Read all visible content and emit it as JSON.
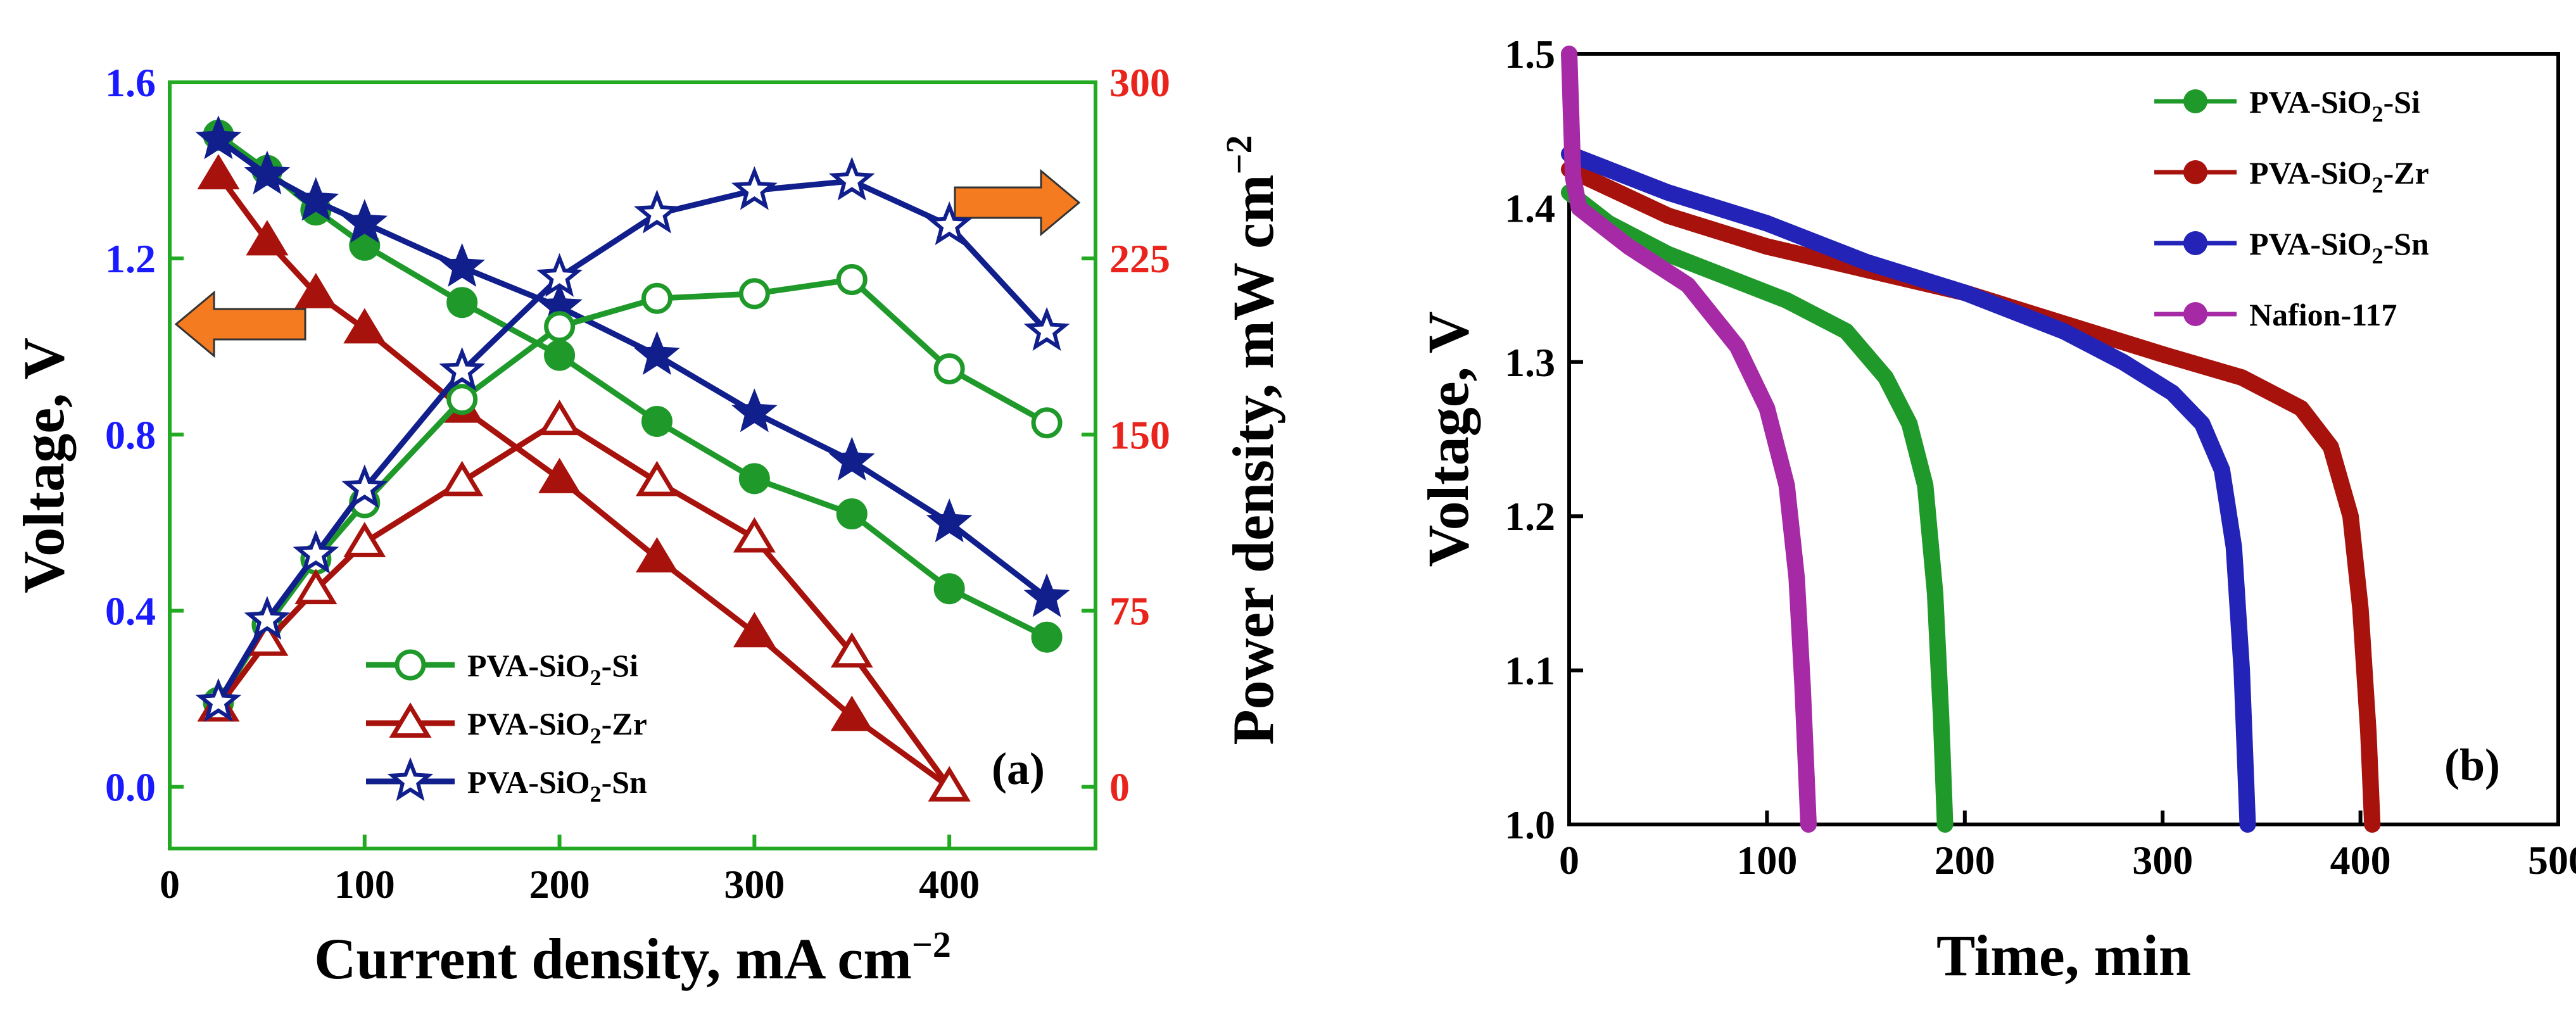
{
  "chart_data": [
    {
      "type": "line",
      "panel_label": "(a)",
      "xlabel": "Current density, mA cm",
      "xlabel_sup": "−2",
      "ylabel": "Voltage, V",
      "ylabel_right": "Power density, mW cm",
      "ylabel_right_sup": "−2",
      "xlim": [
        0,
        475
      ],
      "ylim": [
        -0.14,
        1.6
      ],
      "ylim_right": [
        -26.25,
        300
      ],
      "x_ticks": [
        "0",
        "100",
        "200",
        "300",
        "400"
      ],
      "x_tick_values": [
        0,
        100,
        200,
        300,
        400
      ],
      "y_ticks": [
        "0.0",
        "0.4",
        "0.8",
        "1.2",
        "1.6"
      ],
      "y_tick_values": [
        0.0,
        0.4,
        0.8,
        1.2,
        1.6
      ],
      "y_right_ticks": [
        "0",
        "75",
        "150",
        "225",
        "300"
      ],
      "y_right_tick_values": [
        0,
        75,
        150,
        225,
        300
      ],
      "colors": {
        "left_axis": "#1a1aff",
        "right_axis": "#e8241c",
        "axis_line": "#22aa22",
        "arrow": "#f47b20"
      },
      "arrows": [
        {
          "direction": "left",
          "meaning": "voltage axis"
        },
        {
          "direction": "right",
          "meaning": "power density axis"
        }
      ],
      "legend": [
        {
          "label_main": "PVA-SiO",
          "label_sub": "2",
          "label_end": "-Si",
          "color": "#1f9a2a",
          "marker": "circle"
        },
        {
          "label_main": "PVA-SiO",
          "label_sub": "2",
          "label_end": "-Zr",
          "color": "#a8120c",
          "marker": "triangle"
        },
        {
          "label_main": "PVA-SiO",
          "label_sub": "2",
          "label_end": "-Sn",
          "color": "#111f8c",
          "marker": "star"
        }
      ],
      "series": [
        {
          "name": "PVA-SiO2-Si voltage",
          "axis": "left",
          "marker": "circle",
          "filled": true,
          "color": "#1f9a2a",
          "x": [
            25,
            50,
            75,
            100,
            150,
            200,
            250,
            300,
            350,
            400,
            450
          ],
          "values": [
            1.48,
            1.4,
            1.31,
            1.23,
            1.1,
            0.98,
            0.83,
            0.7,
            0.62,
            0.45,
            0.34
          ]
        },
        {
          "name": "PVA-SiO2-Zr voltage",
          "axis": "left",
          "marker": "triangle",
          "filled": true,
          "color": "#a8120c",
          "x": [
            25,
            50,
            75,
            100,
            150,
            200,
            250,
            300,
            350,
            400
          ],
          "values": [
            1.39,
            1.24,
            1.12,
            1.04,
            0.86,
            0.7,
            0.52,
            0.35,
            0.16,
            0.0
          ]
        },
        {
          "name": "PVA-SiO2-Sn voltage",
          "axis": "left",
          "marker": "star",
          "filled": true,
          "color": "#111f8c",
          "x": [
            25,
            50,
            75,
            100,
            150,
            200,
            250,
            300,
            350,
            400,
            450
          ],
          "values": [
            1.47,
            1.39,
            1.33,
            1.28,
            1.18,
            1.09,
            0.98,
            0.85,
            0.74,
            0.6,
            0.43
          ]
        },
        {
          "name": "PVA-SiO2-Si power",
          "axis": "right",
          "marker": "circle",
          "filled": false,
          "color": "#1f9a2a",
          "x": [
            25,
            50,
            75,
            100,
            150,
            200,
            250,
            300,
            350,
            400,
            450
          ],
          "values": [
            36,
            69,
            97,
            121,
            165,
            196,
            208,
            210,
            216,
            178,
            155
          ]
        },
        {
          "name": "PVA-SiO2-Zr power",
          "axis": "right",
          "marker": "triangle",
          "filled": false,
          "color": "#a8120c",
          "x": [
            25,
            50,
            75,
            100,
            150,
            200,
            250,
            300,
            350,
            400
          ],
          "values": [
            34,
            62,
            84,
            104,
            130,
            156,
            130,
            106,
            57,
            0
          ]
        },
        {
          "name": "PVA-SiO2-Sn power",
          "axis": "right",
          "marker": "star",
          "filled": false,
          "color": "#111f8c",
          "x": [
            25,
            50,
            75,
            100,
            150,
            200,
            250,
            300,
            350,
            400,
            450
          ],
          "values": [
            36,
            71,
            99,
            127,
            177,
            217,
            244,
            254,
            258,
            239,
            194
          ]
        }
      ]
    },
    {
      "type": "line",
      "panel_label": "(b)",
      "xlabel": "Time, min",
      "ylabel": "Voltage, V",
      "xlim": [
        0,
        500
      ],
      "ylim": [
        1.0,
        1.5
      ],
      "x_ticks": [
        "0",
        "100",
        "200",
        "300",
        "400",
        "500"
      ],
      "x_tick_values": [
        0,
        100,
        200,
        300,
        400,
        500
      ],
      "y_ticks": [
        "1.0",
        "1.1",
        "1.2",
        "1.3",
        "1.4",
        "1.5"
      ],
      "y_tick_values": [
        1.0,
        1.1,
        1.2,
        1.3,
        1.4,
        1.5
      ],
      "legend": [
        {
          "label_main": "PVA-SiO",
          "label_sub": "2",
          "label_end": "-Si",
          "color": "#1f9a2a"
        },
        {
          "label_main": "PVA-SiO",
          "label_sub": "2",
          "label_end": "-Zr",
          "color": "#a8120c"
        },
        {
          "label_main": "PVA-SiO",
          "label_sub": "2",
          "label_end": "-Sn",
          "color": "#2323b8"
        },
        {
          "label_main": "Nafion-117",
          "label_sub": "",
          "label_end": "",
          "color": "#a62aa6"
        }
      ],
      "series": [
        {
          "name": "PVA-SiO2-Si",
          "color": "#1f9a2a",
          "x": [
            0,
            20,
            50,
            80,
            110,
            140,
            160,
            172,
            180,
            185,
            188,
            190
          ],
          "values": [
            1.41,
            1.39,
            1.37,
            1.355,
            1.34,
            1.32,
            1.29,
            1.26,
            1.22,
            1.15,
            1.07,
            1.0
          ]
        },
        {
          "name": "PVA-SiO2-Zr",
          "color": "#a8120c",
          "x": [
            0,
            50,
            100,
            150,
            200,
            250,
            300,
            340,
            370,
            385,
            395,
            400,
            404,
            406
          ],
          "values": [
            1.425,
            1.395,
            1.375,
            1.36,
            1.345,
            1.325,
            1.305,
            1.29,
            1.27,
            1.245,
            1.2,
            1.14,
            1.06,
            1.0
          ]
        },
        {
          "name": "PVA-SiO2-Sn",
          "color": "#2323b8",
          "x": [
            0,
            50,
            100,
            150,
            200,
            250,
            280,
            305,
            320,
            330,
            336,
            340,
            343
          ],
          "values": [
            1.435,
            1.41,
            1.39,
            1.365,
            1.345,
            1.32,
            1.3,
            1.28,
            1.26,
            1.23,
            1.18,
            1.1,
            1.0
          ]
        },
        {
          "name": "Nafion-117",
          "color": "#a62aa6",
          "x": [
            0,
            2,
            5,
            30,
            60,
            85,
            100,
            110,
            115,
            118,
            120,
            121
          ],
          "values": [
            1.5,
            1.42,
            1.4,
            1.375,
            1.35,
            1.31,
            1.27,
            1.22,
            1.16,
            1.09,
            1.03,
            1.0
          ]
        }
      ]
    }
  ]
}
